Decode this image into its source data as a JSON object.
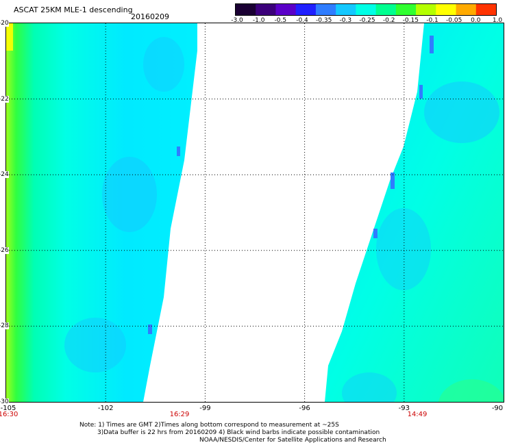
{
  "header": {
    "title": "ASCAT 25KM MLE-1 descending",
    "date": "20160209"
  },
  "colorbar": {
    "colors": [
      "#1a0033",
      "#3b007a",
      "#5a00c8",
      "#2020ff",
      "#2f7dff",
      "#14c8ff",
      "#00ffe6",
      "#00ff90",
      "#30ff30",
      "#b4ff00",
      "#ffff00",
      "#ffaa00",
      "#ff3300"
    ],
    "labels": [
      "-3.0",
      "-1.0",
      "-0.5",
      "-0.4",
      "-0.35",
      "-0.3",
      "-0.25",
      "-0.2",
      "-0.15",
      "-0.1",
      "-0.05",
      "0.0",
      "1.0"
    ]
  },
  "axes": {
    "x_ticks": [
      "-105",
      "-102",
      "-99",
      "-96",
      "-93",
      "-90"
    ],
    "y_ticks": [
      "-20",
      "-22",
      "-24",
      "-26",
      "-28",
      "-30"
    ]
  },
  "times": {
    "left": "16:30",
    "middle": "16:29",
    "right": "14:49"
  },
  "notes": {
    "line1": "Note: 1) Times are GMT 2)Times along bottom correspond to measurement at ~25S",
    "line2": "3)Data buffer is 22 hrs from 20160209 4) Black wind barbs indicate possible contamination",
    "line3": "NOAA/NESDIS/Center for Satellite Applications and Research"
  }
}
